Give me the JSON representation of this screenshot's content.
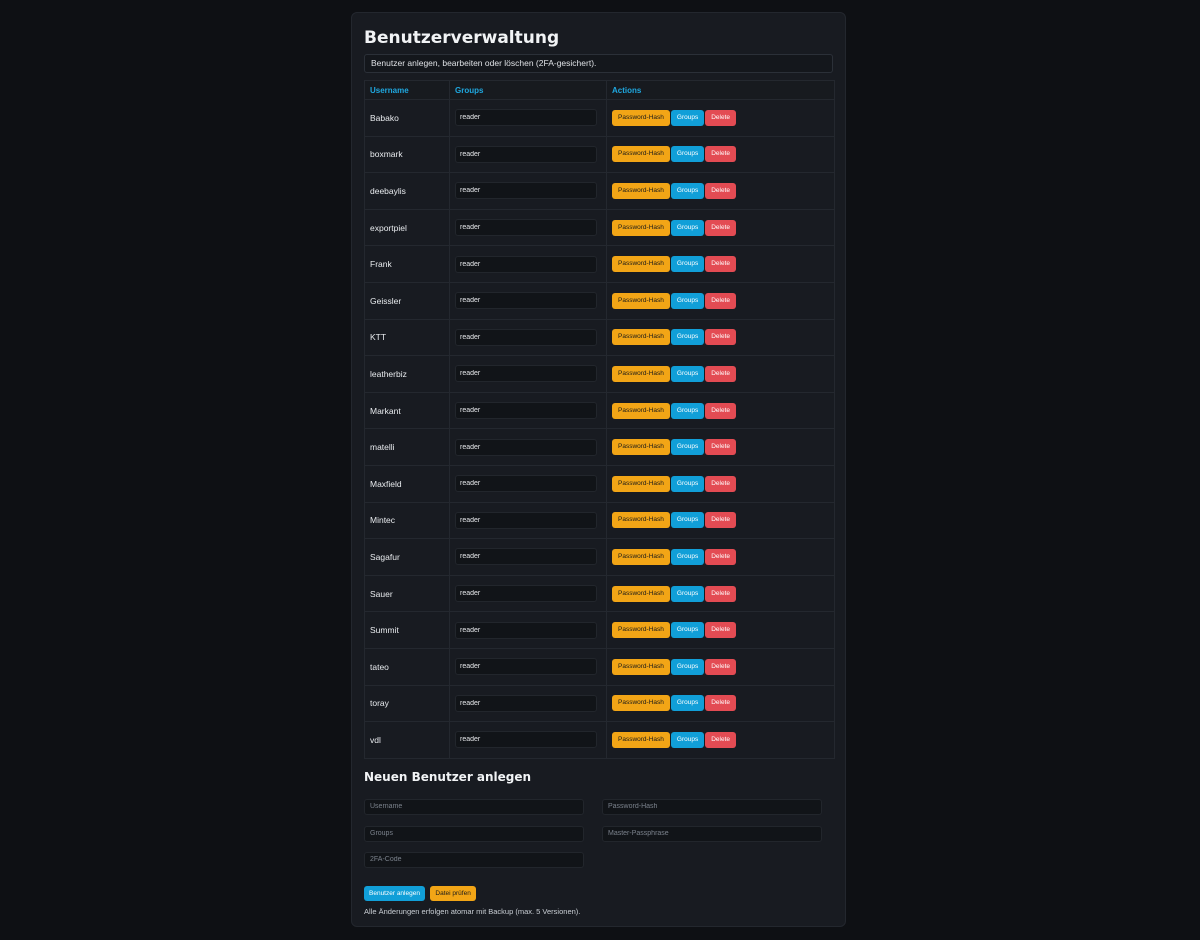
{
  "header": {
    "title": "Benutzerverwaltung",
    "info": "Benutzer anlegen, bearbeiten oder löschen (2FA-gesichert)."
  },
  "table": {
    "columns": [
      "Username",
      "Groups",
      "Actions"
    ],
    "users": [
      {
        "username": "Babako",
        "groups": "reader"
      },
      {
        "username": "boxmark",
        "groups": "reader"
      },
      {
        "username": "deebaylis",
        "groups": "reader"
      },
      {
        "username": "exportpiel",
        "groups": "reader"
      },
      {
        "username": "Frank",
        "groups": "reader"
      },
      {
        "username": "Geissler",
        "groups": "reader"
      },
      {
        "username": "KTT",
        "groups": "reader"
      },
      {
        "username": "leatherbiz",
        "groups": "reader"
      },
      {
        "username": "Markant",
        "groups": "reader"
      },
      {
        "username": "matelli",
        "groups": "reader"
      },
      {
        "username": "Maxfield",
        "groups": "reader"
      },
      {
        "username": "Mintec",
        "groups": "reader"
      },
      {
        "username": "Sagafur",
        "groups": "reader"
      },
      {
        "username": "Sauer",
        "groups": "reader"
      },
      {
        "username": "Summit",
        "groups": "reader"
      },
      {
        "username": "tateo",
        "groups": "reader"
      },
      {
        "username": "toray",
        "groups": "reader"
      },
      {
        "username": "vdl",
        "groups": "reader"
      }
    ],
    "actions": {
      "hash_label": "Password-Hash",
      "groups_label": "Groups",
      "delete_label": "Delete"
    }
  },
  "new_user": {
    "title": "Neuen Benutzer anlegen",
    "username_placeholder": "Username",
    "password_hash_placeholder": "Password-Hash",
    "groups_placeholder": "Groups",
    "master_passphrase_placeholder": "Master-Passphrase",
    "twofa_placeholder": "2FA-Code",
    "create_label": "Benutzer anlegen",
    "check_label": "Datei prüfen",
    "note": "Alle Änderungen erfolgen atomar mit Backup (max. 5 Versionen)."
  },
  "colors": {
    "background": "#0e1014",
    "panel": "#181b21",
    "accent_blue": "#119fd8",
    "accent_orange": "#f2a516",
    "danger_red": "#e34b53"
  }
}
